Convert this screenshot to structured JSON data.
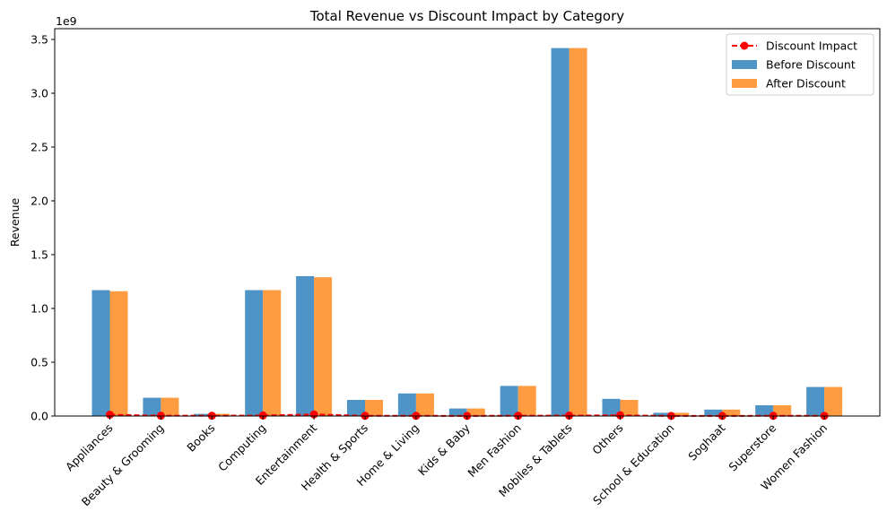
{
  "chart_data": {
    "type": "bar",
    "title": "Total Revenue vs Discount Impact by Category",
    "xlabel": "",
    "ylabel": "Revenue",
    "y_offset_label": "1e9",
    "ylim": [
      0,
      3.6
    ],
    "yticks": [
      "0.0",
      "0.5",
      "1.0",
      "1.5",
      "2.0",
      "2.5",
      "3.0",
      "3.5"
    ],
    "categories": [
      "Appliances",
      "Beauty & Grooming",
      "Books",
      "Computing",
      "Entertainment",
      "Health & Sports",
      "Home & Living",
      "Kids & Baby",
      "Men Fashion",
      "Mobiles & Tablets",
      "Others",
      "School & Education",
      "Soghaat",
      "Superstore",
      "Women Fashion"
    ],
    "series": [
      {
        "name": "Before Discount",
        "type": "bar",
        "color": "#4f94c6",
        "values": [
          1.17,
          0.17,
          0.02,
          1.17,
          1.3,
          0.15,
          0.21,
          0.07,
          0.28,
          3.42,
          0.16,
          0.03,
          0.06,
          0.1,
          0.27
        ]
      },
      {
        "name": "After Discount",
        "type": "bar",
        "color": "#ff9b40",
        "values": [
          1.16,
          0.17,
          0.02,
          1.17,
          1.29,
          0.15,
          0.21,
          0.07,
          0.28,
          3.42,
          0.15,
          0.03,
          0.06,
          0.1,
          0.27
        ]
      },
      {
        "name": "Discount Impact",
        "type": "line",
        "color": "#ff0000",
        "style": "dashed",
        "marker": "circle",
        "values": [
          0.012,
          0.003,
          0.003,
          0.005,
          0.015,
          0.002,
          0.002,
          0.001,
          0.003,
          0.004,
          0.007,
          0.001,
          0.001,
          0.002,
          0.002
        ]
      }
    ],
    "legend": {
      "placement": "top-right",
      "order": [
        "Discount Impact",
        "Before Discount",
        "After Discount"
      ]
    },
    "grid": false
  }
}
